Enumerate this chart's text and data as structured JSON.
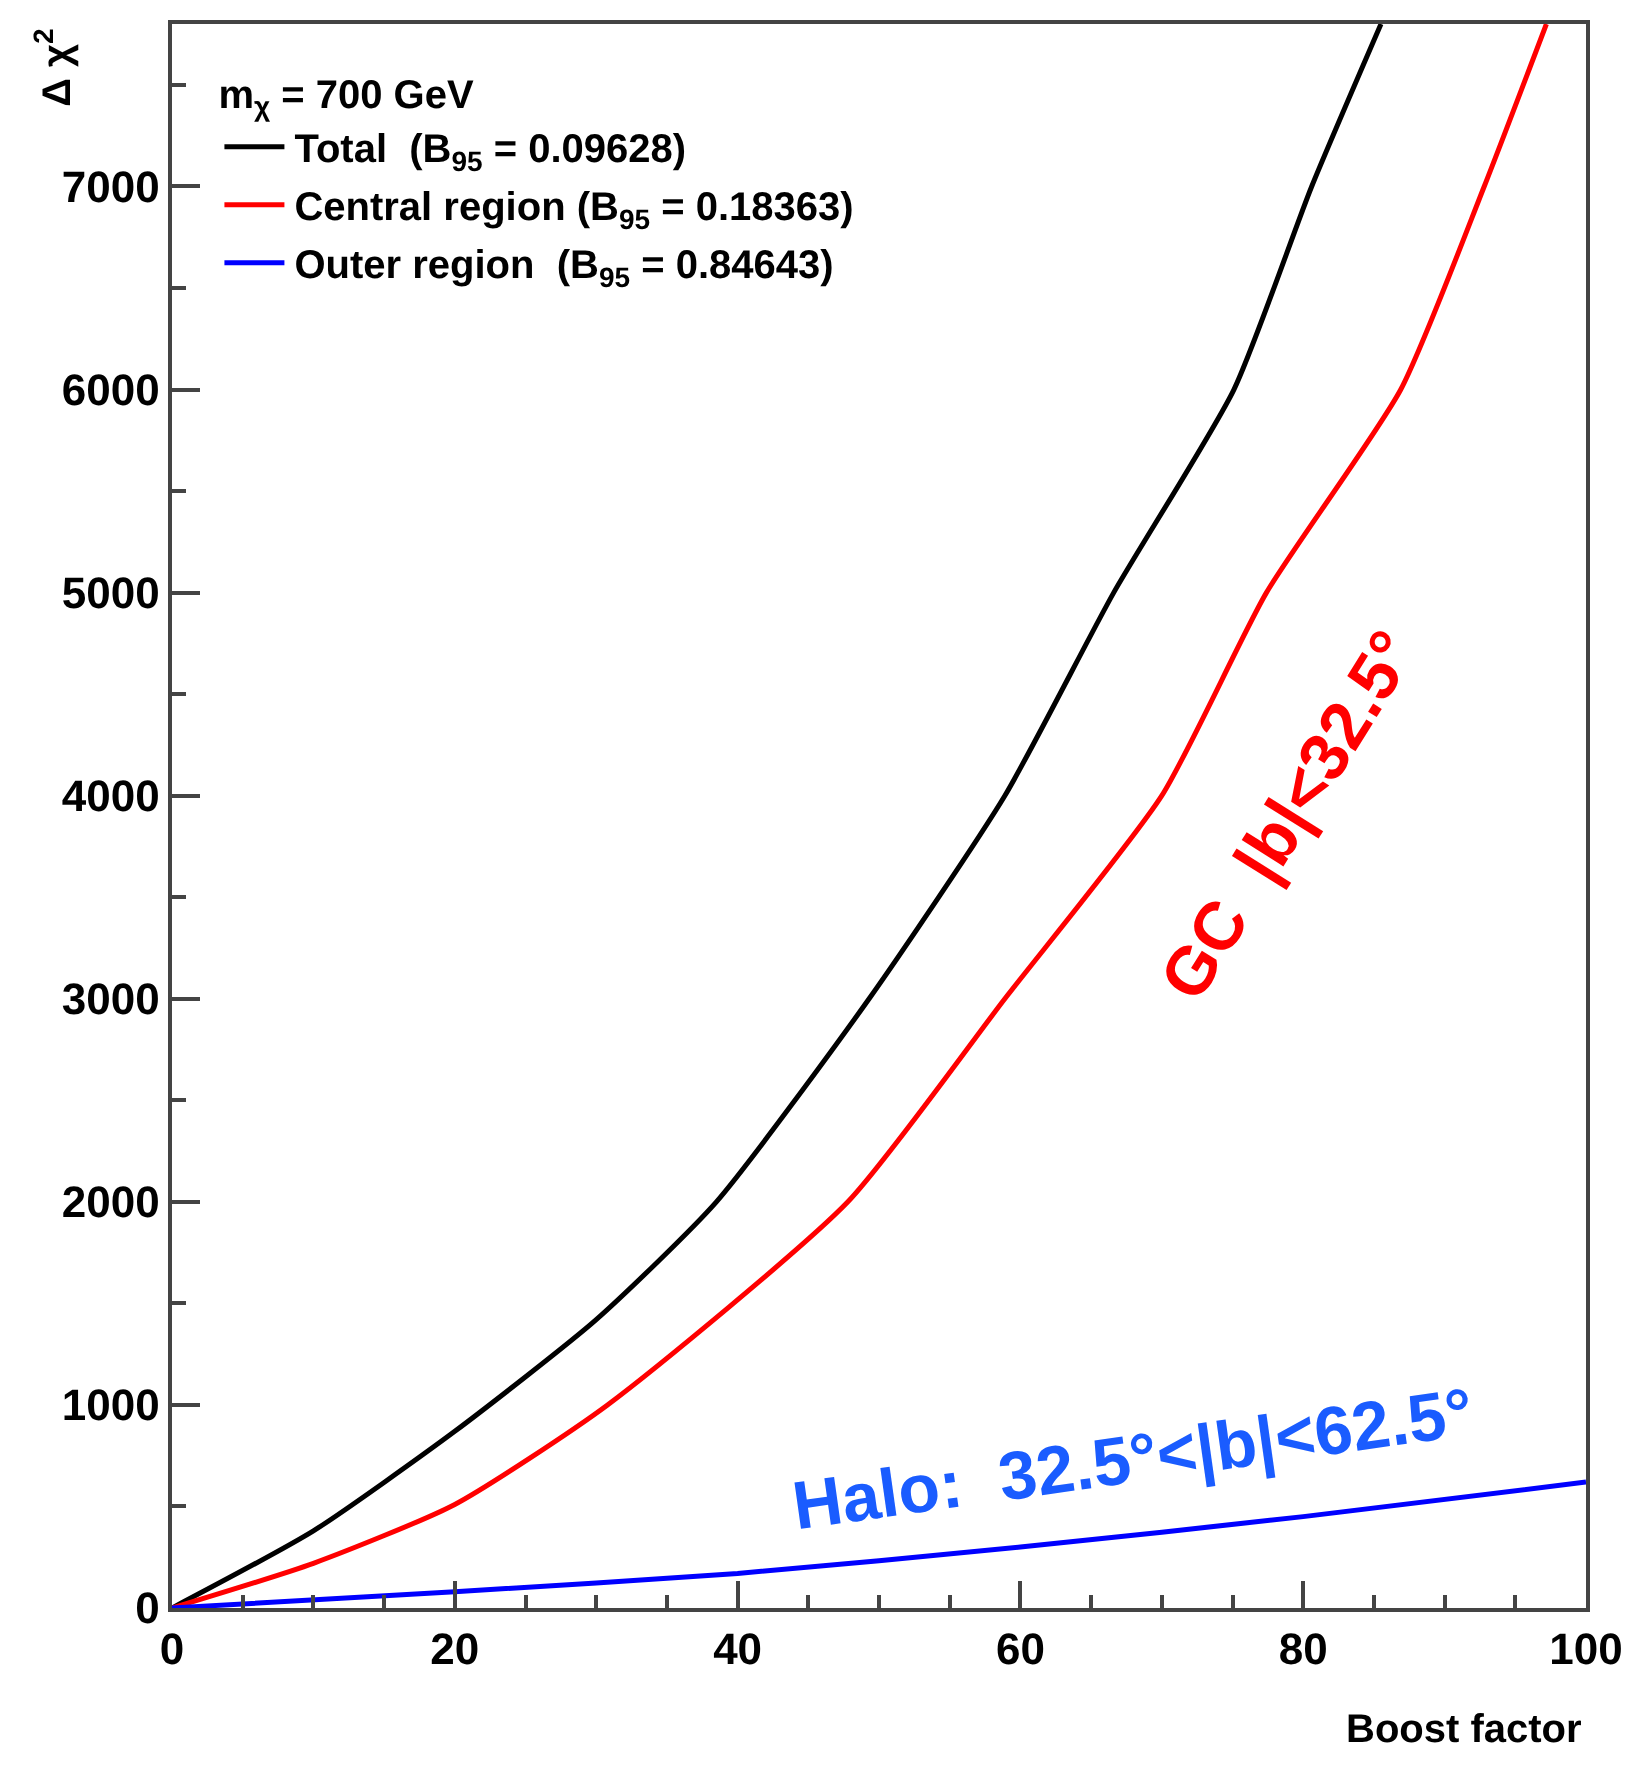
{
  "chart_data": {
    "type": "line",
    "xlabel": "Boost factor",
    "ylabel": "Δ χ$^{2}$",
    "legend_title": "m$_{χ}$ = 700 GeV",
    "legend": "top left",
    "marker": "none",
    "line_style": "solid",
    "xlim": [
      0,
      100
    ],
    "xticks": [
      0,
      20,
      40,
      60,
      80,
      100
    ],
    "ylim": [
      0,
      7800
    ],
    "yticks": [
      0,
      1000,
      2000,
      3000,
      4000,
      5000,
      6000,
      7000
    ],
    "series": [
      {
        "name": "Total  (B$_{95}$ = 0.09628)",
        "color": "#000000",
        "x": [
          0,
          10,
          20,
          30,
          38.5,
          49.3,
          58.9,
          66.6,
          75.1,
          80.6,
          85.5
        ],
        "values": [
          0,
          380,
          870,
          1420,
          2000,
          3000,
          4000,
          5000,
          6000,
          7000,
          7800
        ]
      },
      {
        "name": "Central region (B$_{95}$ = 0.18363)",
        "color": "#ff0000",
        "x": [
          0,
          10,
          20,
          30.8,
          47.8,
          58.9,
          70,
          77.4,
          86.9,
          92.8,
          97.2
        ],
        "values": [
          0,
          220,
          510,
          1000,
          2000,
          3000,
          4000,
          5000,
          6000,
          7000,
          7800
        ]
      },
      {
        "name": "Outer region  (B$_{95}$ = 0.84643)",
        "color": "#0000ff",
        "x": [
          0,
          20,
          40,
          60,
          80,
          100
        ],
        "values": [
          0,
          80,
          170,
          300,
          450,
          620
        ]
      }
    ],
    "annotations": [
      "GC  |b|<32.5°",
      "Halo:  32.5°<|b|<62.5°"
    ]
  }
}
